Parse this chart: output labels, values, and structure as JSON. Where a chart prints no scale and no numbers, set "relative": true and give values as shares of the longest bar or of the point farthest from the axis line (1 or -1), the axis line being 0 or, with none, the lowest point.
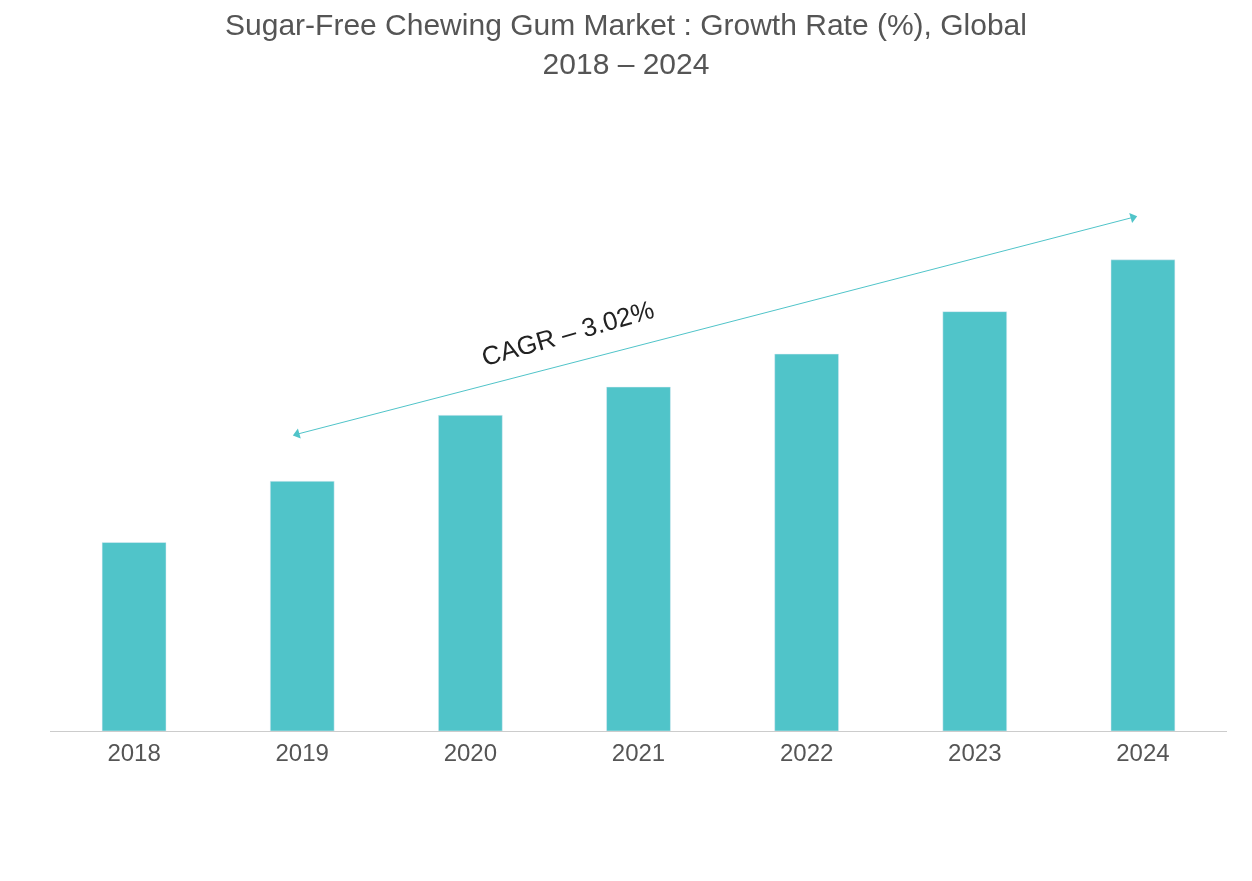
{
  "chart_data": {
    "type": "bar",
    "title": "Sugar-Free Chewing Gum Market : Growth Rate (%), Global\n2018 – 2024",
    "categories": [
      "2018",
      "2019",
      "2020",
      "2021",
      "2022",
      "2023",
      "2024"
    ],
    "values": [
      0.4,
      0.53,
      0.67,
      0.73,
      0.8,
      0.89,
      1
    ],
    "color": "#50c4c9",
    "relative": true,
    "annotations": [
      "CAGR – 3.02%"
    ]
  }
}
